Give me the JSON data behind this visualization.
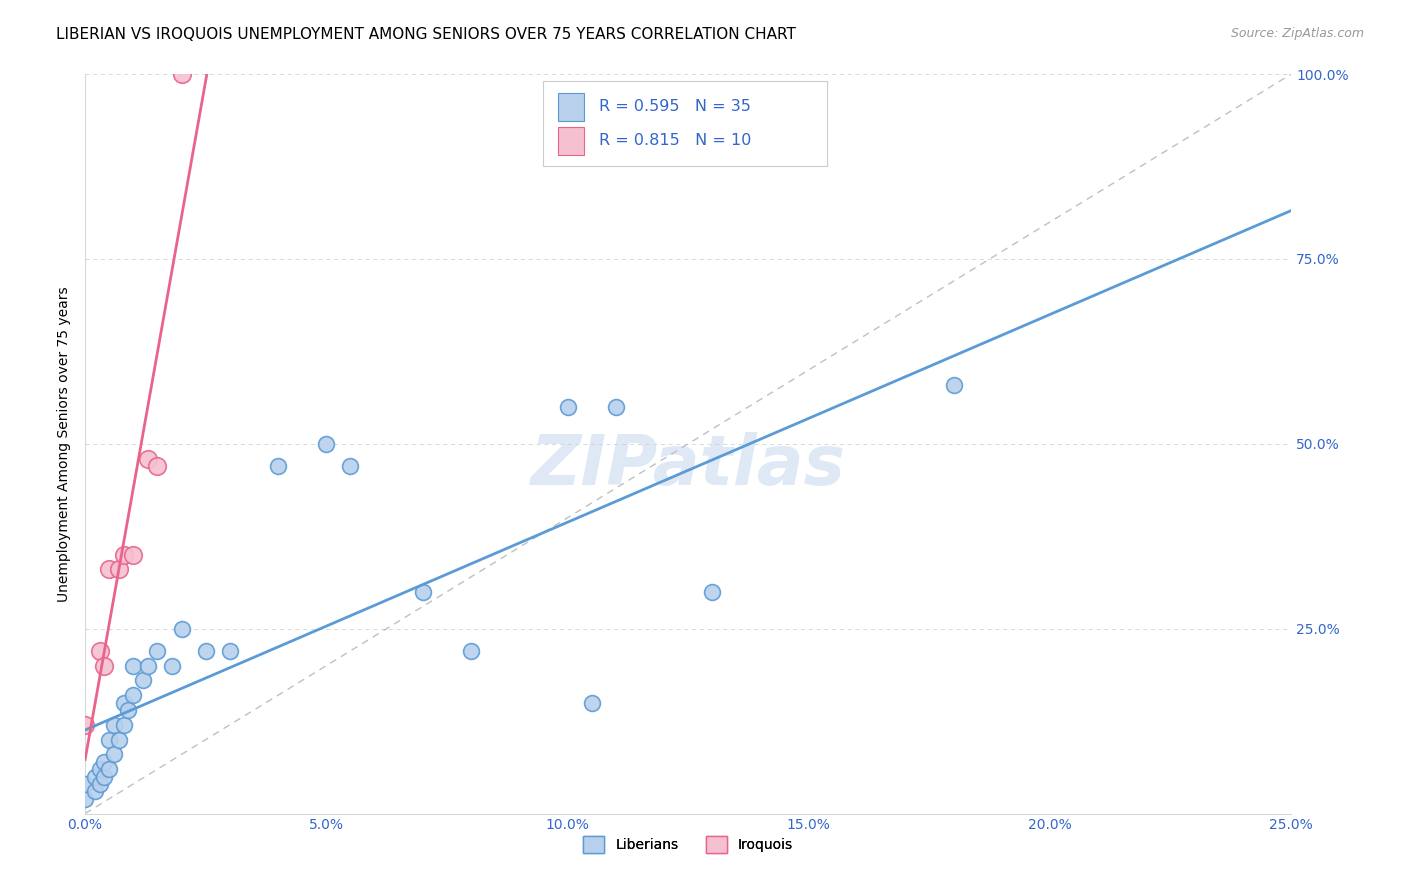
{
  "title": "LIBERIAN VS IROQUOIS UNEMPLOYMENT AMONG SENIORS OVER 75 YEARS CORRELATION CHART",
  "source": "Source: ZipAtlas.com",
  "ylabel": "Unemployment Among Seniors over 75 years",
  "xlim": [
    0.0,
    0.25
  ],
  "ylim": [
    0.0,
    1.0
  ],
  "xticks": [
    0.0,
    0.05,
    0.1,
    0.15,
    0.2,
    0.25
  ],
  "yticks": [
    0.0,
    0.25,
    0.5,
    0.75,
    1.0
  ],
  "xticklabels": [
    "0.0%",
    "5.0%",
    "10.0%",
    "15.0%",
    "20.0%",
    "25.0%"
  ],
  "yticklabels": [
    "",
    "25.0%",
    "50.0%",
    "75.0%",
    "100.0%"
  ],
  "liberian_x": [
    0.0,
    0.0,
    0.002,
    0.002,
    0.003,
    0.003,
    0.004,
    0.004,
    0.005,
    0.005,
    0.006,
    0.006,
    0.007,
    0.008,
    0.008,
    0.009,
    0.01,
    0.01,
    0.012,
    0.013,
    0.015,
    0.018,
    0.02,
    0.025,
    0.03,
    0.04,
    0.05,
    0.055,
    0.07,
    0.08,
    0.1,
    0.105,
    0.11,
    0.13,
    0.18
  ],
  "liberian_y": [
    0.02,
    0.04,
    0.03,
    0.05,
    0.04,
    0.06,
    0.05,
    0.07,
    0.06,
    0.1,
    0.08,
    0.12,
    0.1,
    0.12,
    0.15,
    0.14,
    0.16,
    0.2,
    0.18,
    0.2,
    0.22,
    0.2,
    0.25,
    0.22,
    0.22,
    0.47,
    0.5,
    0.47,
    0.3,
    0.22,
    0.55,
    0.15,
    0.55,
    0.3,
    0.58
  ],
  "iroquois_x": [
    0.0,
    0.003,
    0.004,
    0.005,
    0.007,
    0.008,
    0.01,
    0.013,
    0.015,
    0.02
  ],
  "iroquois_y": [
    0.12,
    0.22,
    0.2,
    0.33,
    0.33,
    0.35,
    0.35,
    0.48,
    0.47,
    1.0
  ],
  "liberian_color": "#b8d0eb",
  "iroquois_color": "#f5c0d0",
  "liberian_line_color": "#5b9bd5",
  "iroquois_line_color": "#e8648a",
  "legend_text_color": "#3366cc",
  "r_liberian": 0.595,
  "n_liberian": 35,
  "r_iroquois": 0.815,
  "n_iroquois": 10,
  "watermark": "ZIPatlas",
  "title_fontsize": 11,
  "axis_color": "#3366cc",
  "grid_color": "#d8d8d8",
  "ref_line_color": "#c0c0c0"
}
